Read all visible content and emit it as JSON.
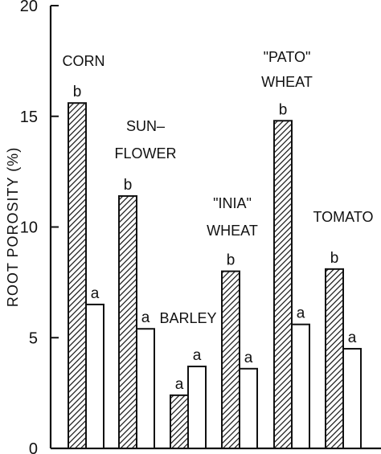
{
  "chart_data": {
    "type": "bar",
    "title": "",
    "xlabel": "",
    "ylabel": "ROOT POROSITY (%)",
    "ylim": [
      0,
      20
    ],
    "yticks": [
      "0",
      "5",
      "10",
      "15",
      "20"
    ],
    "categories": [
      {
        "label_lines": [
          "CORN"
        ]
      },
      {
        "label_lines": [
          "SUN–",
          "FLOWER"
        ]
      },
      {
        "label_lines": [
          "BARLEY"
        ]
      },
      {
        "label_lines": [
          "\"INIA\"",
          "WHEAT"
        ]
      },
      {
        "label_lines": [
          "\"PATO\"",
          "WHEAT"
        ]
      },
      {
        "label_lines": [
          "TOMATO"
        ]
      }
    ],
    "series": [
      {
        "pattern": "hatched",
        "values": [
          15.6,
          11.4,
          2.4,
          8.0,
          14.8,
          8.1
        ],
        "letters": [
          "b",
          "b",
          "a",
          "b",
          "b",
          "b"
        ]
      },
      {
        "pattern": "open",
        "values": [
          6.5,
          5.4,
          3.7,
          3.6,
          5.6,
          4.5
        ],
        "letters": [
          "a",
          "a",
          "a",
          "a",
          "a",
          "a"
        ]
      }
    ],
    "grid": false,
    "colors": {
      "axis": "#111111",
      "hatch": "#111111",
      "open_fill": "#ffffff"
    }
  }
}
